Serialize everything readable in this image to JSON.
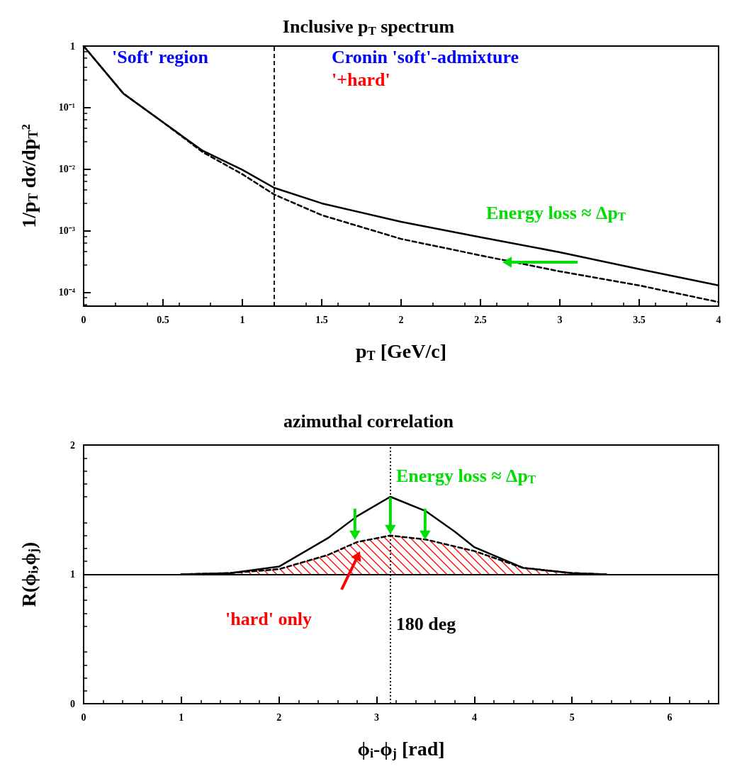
{
  "chart_data": [
    {
      "type": "line",
      "title": "Inclusive p$_{T}$ spectrum",
      "xlabel": "p$_{T}$ [GeV/c]",
      "ylabel": "1/p$_{T}$ dσ/dp$_{T}$²",
      "log": "y",
      "grid": false,
      "x": [
        0,
        0.25,
        0.5,
        0.75,
        1,
        1.2,
        1.5,
        2,
        2.5,
        3,
        3.5,
        4
      ],
      "series": [
        {
          "color": "#000000",
          "line_style": "solid",
          "values": [
            1,
            0.17,
            0.058,
            0.02,
            0.0098,
            0.005,
            0.0028,
            0.0014,
            0.00079,
            0.00045,
            0.00024,
            0.00013
          ]
        },
        {
          "color": "#000000",
          "line_style": "dashed",
          "values": [
            1,
            0.17,
            0.058,
            0.019,
            0.0083,
            0.0039,
            0.0018,
            0.00074,
            0.0004,
            0.00022,
            0.00013,
            7e-05
          ]
        }
      ],
      "xlim": [
        0,
        4
      ],
      "xticks": [
        0,
        0.5,
        1,
        1.5,
        2,
        2.5,
        3,
        3.5,
        4
      ],
      "ylim": [
        6e-05,
        1
      ],
      "yticks": [
        1,
        {
          "value": 0.1,
          "label": "10⁻¹"
        },
        {
          "value": 0.01,
          "label": "10⁻²"
        },
        {
          "value": 0.001,
          "label": "10⁻³"
        },
        {
          "value": 0.0001,
          "label": "10⁻⁴"
        }
      ],
      "ref_lines": [
        {
          "axis": "x",
          "value": 1.2,
          "line_style": "dashed",
          "color": "#000000"
        }
      ],
      "annotations": [
        "'Soft' region",
        "Cronin 'soft'-admixture",
        "'+hard'",
        "Energy loss ≈ Δp$_{T}$"
      ]
    },
    {
      "type": "line",
      "title": "azimuthal correlation",
      "xlabel": "ϕ$_{i}$-ϕ$_{j}$ [rad]",
      "ylabel": "R(ϕ$_{i}$,ϕ$_{j}$)",
      "grid": false,
      "series": [
        {
          "color": "#000000",
          "line_style": "solid",
          "x": [
            1,
            1.5,
            2,
            2.5,
            2.8,
            3.14,
            3.5,
            3.8,
            4,
            4.5,
            5,
            5.35
          ],
          "values": [
            1,
            1.01,
            1.06,
            1.28,
            1.45,
            1.6,
            1.49,
            1.33,
            1.21,
            1.05,
            1.01,
            1
          ]
        },
        {
          "type": "area",
          "color": "#000000",
          "line_style": "dashed",
          "x": [
            1,
            1.5,
            2,
            2.5,
            2.8,
            3.14,
            3.5,
            4,
            4.5,
            5,
            5.35
          ],
          "values": [
            1,
            1.01,
            1.04,
            1.15,
            1.25,
            1.3,
            1.27,
            1.18,
            1.05,
            1.01,
            1
          ]
        }
      ],
      "xlim": [
        0,
        6.5
      ],
      "xticks": [
        0,
        1,
        2,
        3,
        4,
        5,
        6
      ],
      "ylim": [
        0,
        2
      ],
      "yticks": [
        0,
        1,
        2
      ],
      "ref_lines": [
        {
          "axis": "y",
          "value": 1,
          "line_style": "solid",
          "color": "#000000"
        },
        {
          "axis": "x",
          "value": 3.14,
          "line_style": "dotted",
          "color": "#000000",
          "label": "180 deg"
        }
      ],
      "annotations": [
        {
          "text": "Energy loss ≈ Δp$_{T}$",
          "x": 3.14,
          "y": 1.3
        },
        "'hard' only"
      ]
    }
  ]
}
